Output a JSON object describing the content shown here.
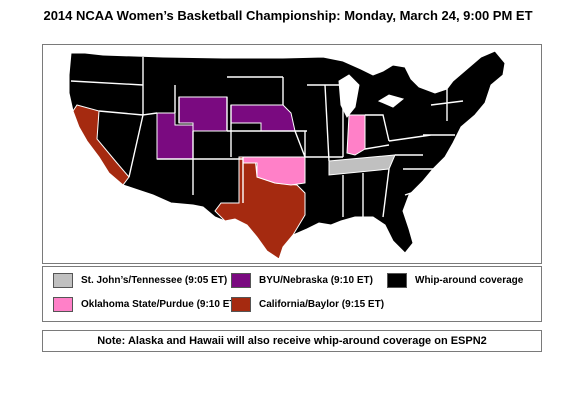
{
  "title": "2014 NCAA Women’s Basketball Championship: Monday, March 24, 9:00 PM ET",
  "colors": {
    "whip_around": "#000000",
    "state_border": "#ffffff",
    "st_johns_tennessee": "#c0c0c0",
    "byu_nebraska": "#7a0a80",
    "oklahoma_state_purdue": "#ff80c8",
    "california_baylor": "#a52a10"
  },
  "legend": {
    "st_johns_tennessee": "St. John’s/Tennessee (9:05 ET)",
    "byu_nebraska": "BYU/Nebraska (9:10 ET)",
    "whip_around": "Whip-around coverage",
    "oklahoma_state_purdue": "Oklahoma State/Purdue (9:10 ET)",
    "california_baylor": "California/Baylor (9:15 ET)"
  },
  "note": "Note:  Alaska and Hawaii will also receive whip-around coverage on ESPN2",
  "map_coverage": {
    "whip_around": "all other states",
    "st_johns_tennessee": [
      "Tennessee"
    ],
    "byu_nebraska": [
      "Utah",
      "Wyoming",
      "Nebraska"
    ],
    "oklahoma_state_purdue": [
      "Oklahoma",
      "Indiana"
    ],
    "california_baylor": [
      "California",
      "Texas"
    ]
  }
}
